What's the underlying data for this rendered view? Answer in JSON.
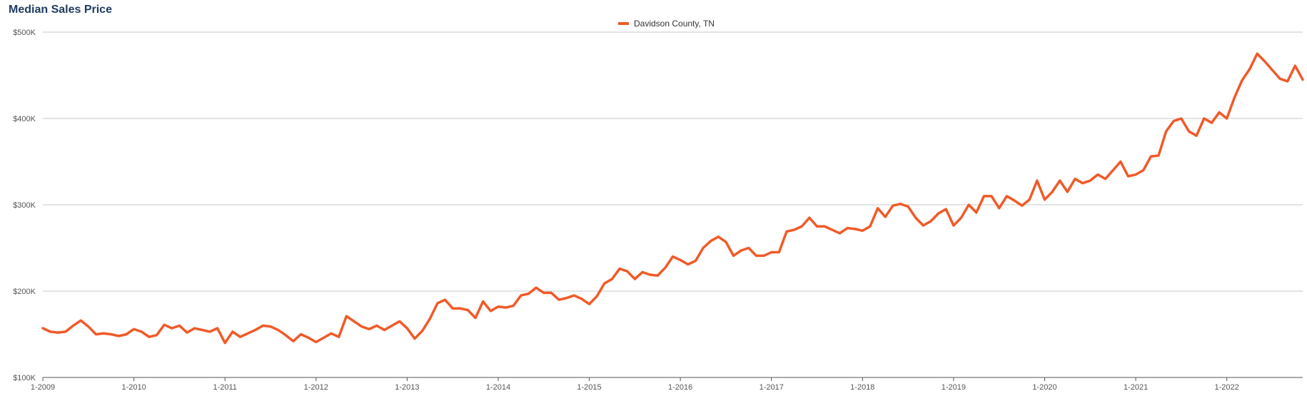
{
  "chart_data": {
    "type": "line",
    "title": "Median Sales Price",
    "xlabel": "",
    "ylabel": "",
    "ylim": [
      100000,
      500000
    ],
    "y_ticks": [
      "$100K",
      "$200K",
      "$300K",
      "$400K",
      "$500K"
    ],
    "y_tick_values": [
      100000,
      200000,
      300000,
      400000,
      500000
    ],
    "x_ticks": [
      "1-2009",
      "1-2010",
      "1-2011",
      "1-2012",
      "1-2013",
      "1-2014",
      "1-2015",
      "1-2016",
      "1-2017",
      "1-2018",
      "1-2019",
      "1-2020",
      "1-2021",
      "1-2022"
    ],
    "x_start": "1-2009",
    "x_end": "11-2022",
    "grid": "horizontal",
    "legend": "top-center",
    "series": [
      {
        "name": "Davidson County, TN",
        "color": "#f05a28",
        "values": [
          157000,
          153000,
          152000,
          153000,
          160000,
          166000,
          159000,
          150000,
          151000,
          150000,
          148000,
          150000,
          156000,
          153000,
          147000,
          149000,
          161000,
          157000,
          160000,
          152000,
          157000,
          155000,
          153000,
          157000,
          140000,
          153000,
          147000,
          151000,
          155000,
          160000,
          159000,
          155000,
          149000,
          142000,
          150000,
          146000,
          141000,
          146000,
          151000,
          147000,
          171000,
          165000,
          159000,
          156000,
          160000,
          155000,
          160000,
          165000,
          157000,
          145000,
          154000,
          168000,
          186000,
          190000,
          180000,
          180000,
          178000,
          169000,
          188000,
          177000,
          182000,
          181000,
          183000,
          195000,
          197000,
          204000,
          198000,
          198000,
          190000,
          192000,
          195000,
          191000,
          185000,
          194000,
          209000,
          214000,
          226000,
          223000,
          214000,
          222000,
          219000,
          218000,
          227000,
          240000,
          236000,
          231000,
          235000,
          250000,
          258000,
          263000,
          257000,
          241000,
          247000,
          250000,
          241000,
          241000,
          245000,
          245000,
          269000,
          271000,
          275000,
          285000,
          275000,
          275000,
          271000,
          267000,
          273000,
          272000,
          270000,
          275000,
          296000,
          286000,
          299000,
          301000,
          298000,
          285000,
          276000,
          281000,
          290000,
          295000,
          276000,
          285000,
          300000,
          291000,
          310000,
          310000,
          296000,
          310000,
          305000,
          299000,
          306000,
          328000,
          306000,
          315000,
          328000,
          315000,
          330000,
          325000,
          328000,
          335000,
          330000,
          340000,
          350000,
          333000,
          335000,
          340000,
          356000,
          357000,
          385000,
          397000,
          400000,
          385000,
          380000,
          400000,
          395000,
          407000,
          400000,
          424000,
          444000,
          457000,
          475000,
          466000,
          456000,
          446000,
          443000,
          461000,
          445000
        ]
      }
    ]
  }
}
